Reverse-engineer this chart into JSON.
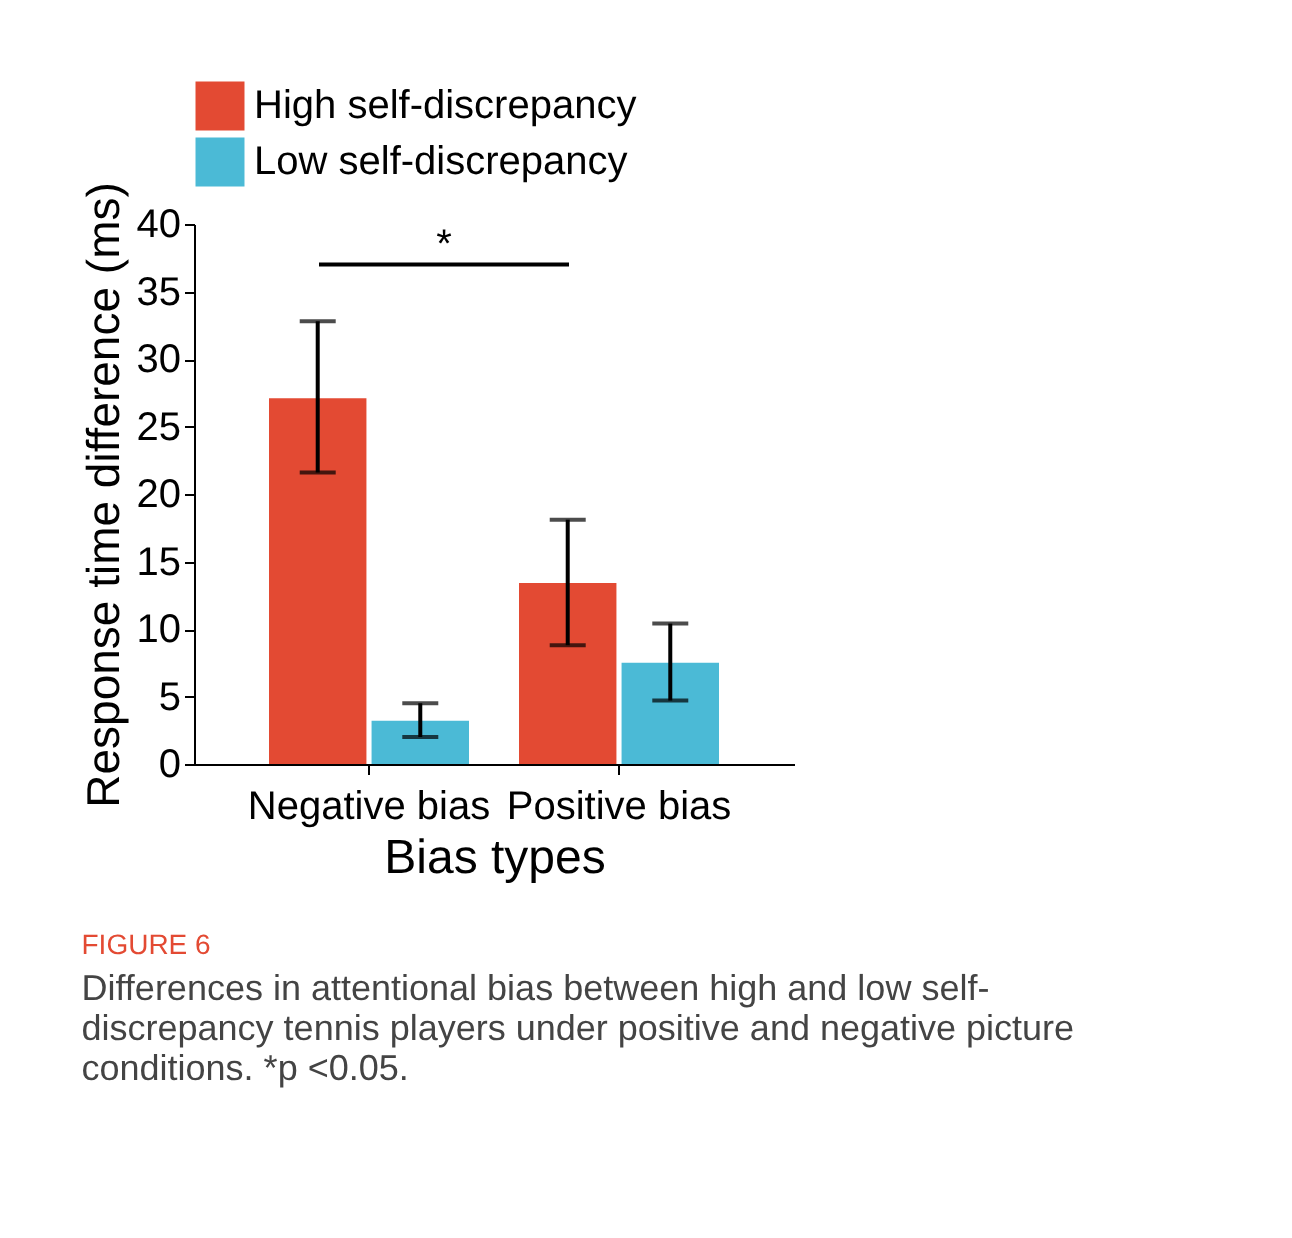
{
  "chart_data": {
    "type": "bar",
    "xlabel": "Bias types",
    "ylabel": "Response time difference (ms)",
    "categories": [
      "Negative bias",
      "Positive bias"
    ],
    "series": [
      {
        "name": "High self-discrepancy",
        "color": "#e34a33",
        "values": [
          27.1,
          13.4
        ],
        "errors": [
          [
            21.6,
            32.8
          ],
          [
            8.8,
            18.1
          ]
        ]
      },
      {
        "name": "Low self-discrepancy",
        "color": "#4bbad6",
        "values": [
          3.2,
          7.5
        ],
        "errors": [
          [
            2.0,
            4.5
          ],
          [
            4.7,
            10.4
          ]
        ]
      }
    ],
    "ylim": [
      0,
      40
    ],
    "yticks": [
      0,
      5,
      10,
      15,
      20,
      25,
      30,
      35,
      40
    ],
    "grid": false,
    "legend": "top",
    "annotations": [
      "*",
      "FIGURE 6",
      "Differences in attentional bias between high and low self-discrepancy tennis players under positive and negative picture conditions. *p <0.05."
    ]
  }
}
